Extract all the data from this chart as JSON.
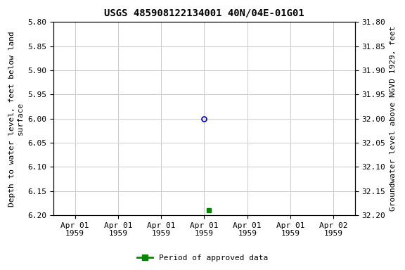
{
  "title": "USGS 485908122134001 40N/04E-01G01",
  "ylabel_left": "Depth to water level, feet below land\nsurface",
  "ylabel_right": "Groundwater level above NGVD 1929, feet",
  "ylim_left": [
    5.8,
    6.2
  ],
  "ylim_right": [
    31.8,
    32.2
  ],
  "yticks_left": [
    5.8,
    5.85,
    5.9,
    5.95,
    6.0,
    6.05,
    6.1,
    6.15,
    6.2
  ],
  "yticks_right": [
    31.8,
    31.85,
    31.9,
    31.95,
    32.0,
    32.05,
    32.1,
    32.15,
    32.2
  ],
  "open_circle_value": 6.0,
  "green_square_value": 6.19,
  "open_circle_color": "#0000cc",
  "green_color": "#008800",
  "background_color": "#ffffff",
  "grid_color": "#cccccc",
  "title_fontsize": 10,
  "axis_label_fontsize": 8,
  "tick_fontsize": 8,
  "legend_label": "Period of approved data",
  "x_tick_labels": [
    "Apr 01\n1959",
    "Apr 01\n1959",
    "Apr 01\n1959",
    "Apr 01\n1959",
    "Apr 01\n1959",
    "Apr 01\n1959",
    "Apr 02\n1959"
  ],
  "data_point_index": 3,
  "num_ticks": 7
}
